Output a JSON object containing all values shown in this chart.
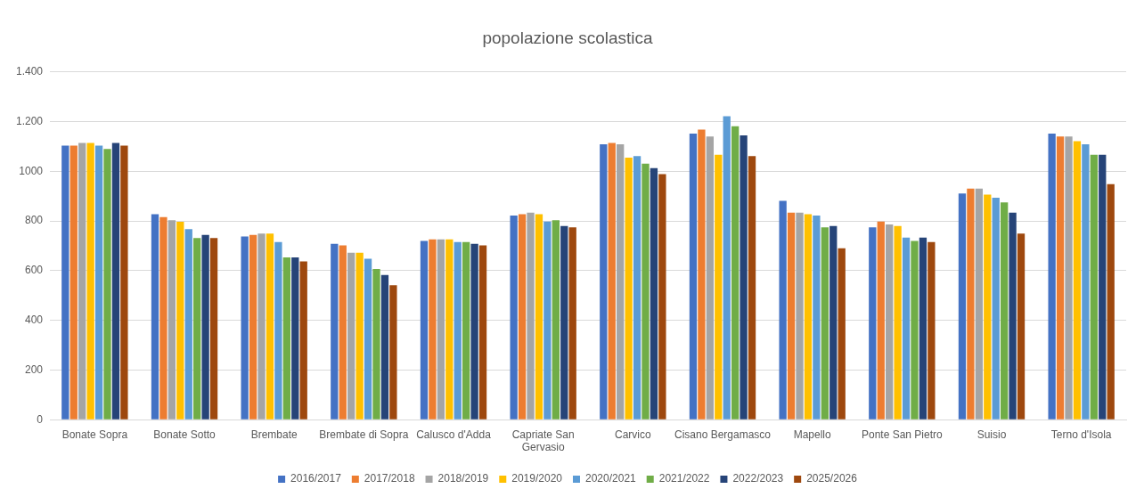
{
  "chart_data": {
    "type": "bar",
    "title": "popolazione scolastica",
    "categories": [
      "Bonate Sopra",
      "Bonate Sotto",
      "Brembate",
      "Brembate di Sopra",
      "Calusco d'Adda",
      "Capriate San Gervasio",
      "Carvico",
      "Cisano Bergamasco",
      "Mapello",
      "Ponte San Pietro",
      "Suisio",
      "Terno d'Isola"
    ],
    "series": [
      {
        "name": "2016/2017",
        "color": "#4472c4",
        "values": [
          1103,
          827,
          738,
          708,
          720,
          822,
          1109,
          1152,
          881,
          774,
          911,
          1152
        ]
      },
      {
        "name": "2017/2018",
        "color": "#ed7d31",
        "values": [
          1103,
          816,
          744,
          702,
          726,
          827,
          1114,
          1168,
          834,
          798,
          930,
          1140
        ]
      },
      {
        "name": "2018/2019",
        "color": "#a5a5a5",
        "values": [
          1114,
          803,
          749,
          672,
          726,
          834,
          1109,
          1140,
          834,
          786,
          930,
          1140
        ]
      },
      {
        "name": "2019/2020",
        "color": "#ffc000",
        "values": [
          1114,
          797,
          749,
          672,
          726,
          827,
          1055,
          1067,
          827,
          780,
          906,
          1121
        ]
      },
      {
        "name": "2020/2021",
        "color": "#5b9bd5",
        "values": [
          1103,
          767,
          715,
          648,
          715,
          798,
          1061,
          1222,
          822,
          733,
          894,
          1109
        ]
      },
      {
        "name": "2021/2022",
        "color": "#70ad47",
        "values": [
          1090,
          731,
          653,
          607,
          715,
          803,
          1031,
          1181,
          774,
          720,
          875,
          1067
        ]
      },
      {
        "name": "2022/2023",
        "color": "#264478",
        "values": [
          1114,
          744,
          653,
          583,
          708,
          780,
          1013,
          1145,
          780,
          733,
          834,
          1067
        ]
      },
      {
        "name": "2025/2026",
        "color": "#9e480e",
        "values": [
          1103,
          731,
          637,
          541,
          702,
          774,
          989,
          1061,
          690,
          715,
          749,
          948
        ]
      }
    ],
    "ylim": [
      0,
      1400
    ],
    "yticks": [
      0,
      200,
      400,
      600,
      800,
      1000,
      {
        "value": 1200,
        "label": "1.200"
      },
      {
        "value": 1400,
        "label": "1.400"
      }
    ],
    "grid": "y",
    "legend": "bottom"
  }
}
